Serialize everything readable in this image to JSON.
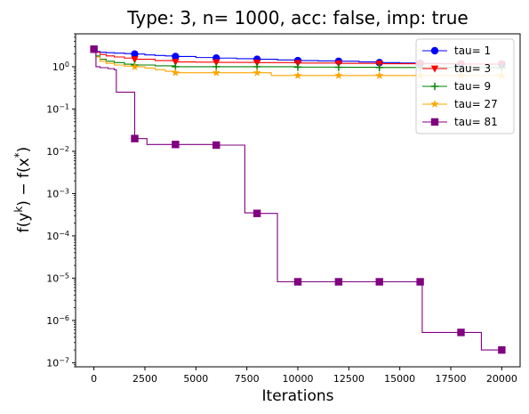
{
  "chart_data": {
    "type": "line",
    "title": "Type: 3, n= 1000, acc: false, imp: true",
    "xlabel": "Iterations",
    "ylabel": "f(y^k) − f(x^*)",
    "ylabel_parts": {
      "f1": "f(y",
      "sup1": "k",
      "mid": ") − f(x",
      "sup2": "*",
      "end": ")"
    },
    "xlim": [
      -900,
      20900
    ],
    "ylim": [
      8e-08,
      6
    ],
    "yscale": "log",
    "xticks": [
      0,
      2500,
      5000,
      7500,
      10000,
      12500,
      15000,
      17500,
      20000
    ],
    "xtick_labels": [
      "0",
      "2500",
      "5000",
      "7500",
      "10000",
      "12500",
      "15000",
      "17500",
      "20000"
    ],
    "yticks": [
      1e-07,
      1e-06,
      1e-05,
      0.0001,
      0.001,
      0.01,
      0.1,
      1
    ],
    "ytick_labels": [
      {
        "base": "10",
        "exp": "−7"
      },
      {
        "base": "10",
        "exp": "−6"
      },
      {
        "base": "10",
        "exp": "−5"
      },
      {
        "base": "10",
        "exp": "−4"
      },
      {
        "base": "10",
        "exp": "−3"
      },
      {
        "base": "10",
        "exp": "−2"
      },
      {
        "base": "10",
        "exp": "−1"
      },
      {
        "base": "10",
        "exp": "0"
      }
    ],
    "grid": false,
    "legend_position": "top-right",
    "series": [
      {
        "name": "tau= 1",
        "color": "#0000ff",
        "marker": "circle",
        "x": [
          0,
          100,
          300,
          600,
          1000,
          1500,
          2000,
          2500,
          3000,
          3500,
          4000,
          5000,
          6000,
          7000,
          8000,
          9000,
          10000,
          11000,
          12000,
          13000,
          14000,
          15000,
          16000,
          17000,
          18000,
          19000,
          20000
        ],
        "y": [
          2.6,
          2.3,
          2.2,
          2.15,
          2.1,
          2.05,
          2.0,
          1.9,
          1.85,
          1.8,
          1.75,
          1.65,
          1.6,
          1.55,
          1.5,
          1.45,
          1.4,
          1.37,
          1.35,
          1.3,
          1.25,
          1.22,
          1.2,
          1.18,
          1.16,
          1.15,
          1.15
        ],
        "marker_x": [
          0,
          2000,
          4000,
          6000,
          8000,
          10000,
          12000,
          14000,
          16000,
          18000,
          20000
        ]
      },
      {
        "name": "tau= 3",
        "color": "#ff0000",
        "marker": "triangle-down",
        "x": [
          0,
          100,
          300,
          600,
          1000,
          1500,
          2000,
          3000,
          4000,
          5000,
          6000,
          8000,
          10000,
          12000,
          14000,
          16000,
          18000,
          20000
        ],
        "y": [
          2.6,
          2.2,
          1.95,
          1.8,
          1.7,
          1.6,
          1.5,
          1.4,
          1.3,
          1.28,
          1.27,
          1.25,
          1.22,
          1.2,
          1.18,
          1.17,
          1.16,
          1.15
        ],
        "marker_x": [
          0,
          2000,
          4000,
          6000,
          8000,
          10000,
          12000,
          14000,
          16000,
          18000,
          20000
        ]
      },
      {
        "name": "tau= 9",
        "color": "#008000",
        "marker": "plus",
        "x": [
          0,
          100,
          300,
          600,
          1000,
          1500,
          2000,
          3000,
          4000,
          6000,
          8000,
          10000,
          12000,
          14000,
          16000,
          18000,
          20000
        ],
        "y": [
          2.6,
          1.8,
          1.5,
          1.35,
          1.25,
          1.15,
          1.1,
          1.05,
          1.0,
          1.0,
          1.0,
          0.98,
          0.97,
          0.96,
          0.96,
          0.95,
          0.95
        ],
        "marker_x": [
          0,
          2000,
          4000,
          6000,
          8000,
          10000,
          12000,
          14000,
          16000,
          18000,
          20000
        ]
      },
      {
        "name": "tau= 27",
        "color": "#ffa500",
        "marker": "star",
        "x": [
          0,
          100,
          300,
          600,
          1000,
          1500,
          2000,
          2500,
          3000,
          3500,
          4000,
          6000,
          8000,
          8700,
          10000,
          12000,
          14000,
          16000,
          18000,
          20000
        ],
        "y": [
          2.6,
          1.7,
          1.35,
          1.2,
          1.1,
          1.03,
          1.0,
          0.93,
          0.85,
          0.78,
          0.72,
          0.72,
          0.72,
          0.62,
          0.62,
          0.62,
          0.62,
          0.62,
          0.62,
          0.62
        ],
        "marker_x": [
          0,
          2000,
          4000,
          6000,
          8000,
          10000,
          12000,
          14000,
          16000,
          18000,
          20000
        ]
      },
      {
        "name": "tau= 81",
        "color": "#800080",
        "marker": "square",
        "x": [
          0,
          100,
          300,
          700,
          1000,
          1100,
          1900,
          2000,
          2600,
          4000,
          6000,
          7300,
          7400,
          8000,
          8900,
          9000,
          10000,
          12000,
          14000,
          16000,
          16100,
          18000,
          18900,
          19000,
          20000
        ],
        "y": [
          2.6,
          1.0,
          0.95,
          0.9,
          0.85,
          0.25,
          0.25,
          0.02,
          0.0145,
          0.0145,
          0.014,
          0.014,
          0.00035,
          0.00034,
          0.00034,
          8.2e-06,
          8.2e-06,
          8.2e-06,
          8.2e-06,
          8.2e-06,
          5.2e-07,
          5.2e-07,
          5.2e-07,
          2e-07,
          2e-07
        ],
        "marker_points": [
          [
            0,
            2.6
          ],
          [
            2000,
            0.02
          ],
          [
            4000,
            0.0145
          ],
          [
            6000,
            0.014
          ],
          [
            8000,
            0.00034
          ],
          [
            10000,
            8.2e-06
          ],
          [
            12000,
            8.2e-06
          ],
          [
            14000,
            8.2e-06
          ],
          [
            16000,
            8.2e-06
          ],
          [
            18000,
            5.2e-07
          ],
          [
            20000,
            2e-07
          ]
        ]
      }
    ]
  }
}
